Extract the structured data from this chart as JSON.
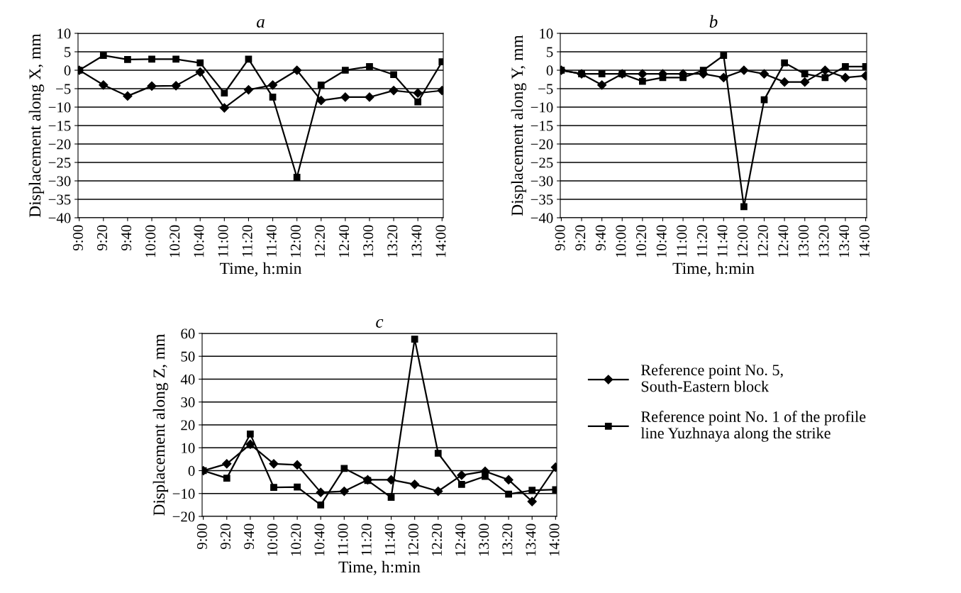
{
  "chart_data": [
    {
      "type": "line",
      "title": "a",
      "xlabel": "Time, h:min",
      "ylabel": "Displacement along X, mm",
      "categories": [
        "9:00",
        "9:20",
        "9:40",
        "10:00",
        "10:20",
        "10:40",
        "11:00",
        "11:20",
        "11:40",
        "12:00",
        "12:20",
        "12:40",
        "13:00",
        "13:20",
        "13:40",
        "14:00"
      ],
      "ylim": [
        -40,
        10
      ],
      "yticks": [
        -40,
        -35,
        -30,
        -25,
        -20,
        -15,
        -10,
        -5,
        0,
        5,
        10
      ],
      "grid": "y",
      "legend": false,
      "series": [
        {
          "color": "#000000",
          "marker": "square",
          "values": [
            0,
            4,
            2.9,
            3,
            3,
            2,
            -6.2,
            3,
            -7.3,
            -29,
            -4,
            0,
            1,
            -1.2,
            -8.6,
            2.3
          ]
        },
        {
          "color": "#000000",
          "marker": "diamond",
          "values": [
            0,
            -4,
            -7,
            -4.3,
            -4.2,
            -0.5,
            -10.2,
            -5.3,
            -4,
            0,
            -8.2,
            -7.3,
            -7.3,
            -5.5,
            -6.2,
            -5.5
          ]
        }
      ]
    },
    {
      "type": "line",
      "title": "b",
      "xlabel": "Time, h:min",
      "ylabel": "Displacement along Y, mm",
      "categories": [
        "9:00",
        "9:20",
        "9:40",
        "10:00",
        "10:20",
        "10:40",
        "11:00",
        "11:20",
        "11:40",
        "12:00",
        "12:20",
        "12:40",
        "13:00",
        "13:20",
        "13:40",
        "14:00"
      ],
      "ylim": [
        -40,
        10
      ],
      "yticks": [
        -40,
        -35,
        -30,
        -25,
        -20,
        -15,
        -10,
        -5,
        0,
        5,
        10
      ],
      "grid": "y",
      "legend": false,
      "series": [
        {
          "color": "#000000",
          "marker": "diamond",
          "values": [
            0,
            -1,
            -4,
            -1,
            -1,
            -1,
            -1,
            -1,
            -2,
            0,
            -1,
            -3.2,
            -3.2,
            0,
            -2,
            -1.5
          ]
        },
        {
          "color": "#000000",
          "marker": "square",
          "values": [
            0,
            -1,
            -1,
            -1,
            -3,
            -2,
            -2,
            0,
            4,
            -37,
            -8,
            2,
            -1,
            -2,
            1,
            1
          ]
        }
      ]
    },
    {
      "type": "line",
      "title": "c",
      "xlabel": "Time, h:min",
      "ylabel": "Displacement along Z, mm",
      "categories": [
        "9:00",
        "9:20",
        "9:40",
        "10:00",
        "10:20",
        "10:40",
        "11:00",
        "11:20",
        "11:40",
        "12:00",
        "12:20",
        "12:40",
        "13:00",
        "13:20",
        "13:40",
        "14:00"
      ],
      "ylim": [
        -20,
        60
      ],
      "yticks": [
        -20,
        -10,
        0,
        10,
        20,
        30,
        40,
        50,
        60
      ],
      "grid": "y",
      "legend": "right",
      "series": [
        {
          "name": "Reference point No. 5,\nSouth-Eastern block",
          "color": "#000000",
          "marker": "diamond",
          "values": [
            0,
            3,
            11.5,
            3,
            2.5,
            -9.5,
            -9,
            -4,
            -4,
            -6,
            -9,
            -2,
            -0.3,
            -4,
            -13.5,
            1.5
          ]
        },
        {
          "name": "Reference point No. 1 of the profile\nline Yuzhnaya along the strike",
          "color": "#000000",
          "marker": "square",
          "values": [
            0,
            -3.3,
            16,
            -7.3,
            -7.2,
            -15,
            1,
            -4.3,
            -11.7,
            57.5,
            7.6,
            -6,
            -2.5,
            -10.3,
            -8.6,
            -8.3
          ]
        }
      ]
    }
  ]
}
